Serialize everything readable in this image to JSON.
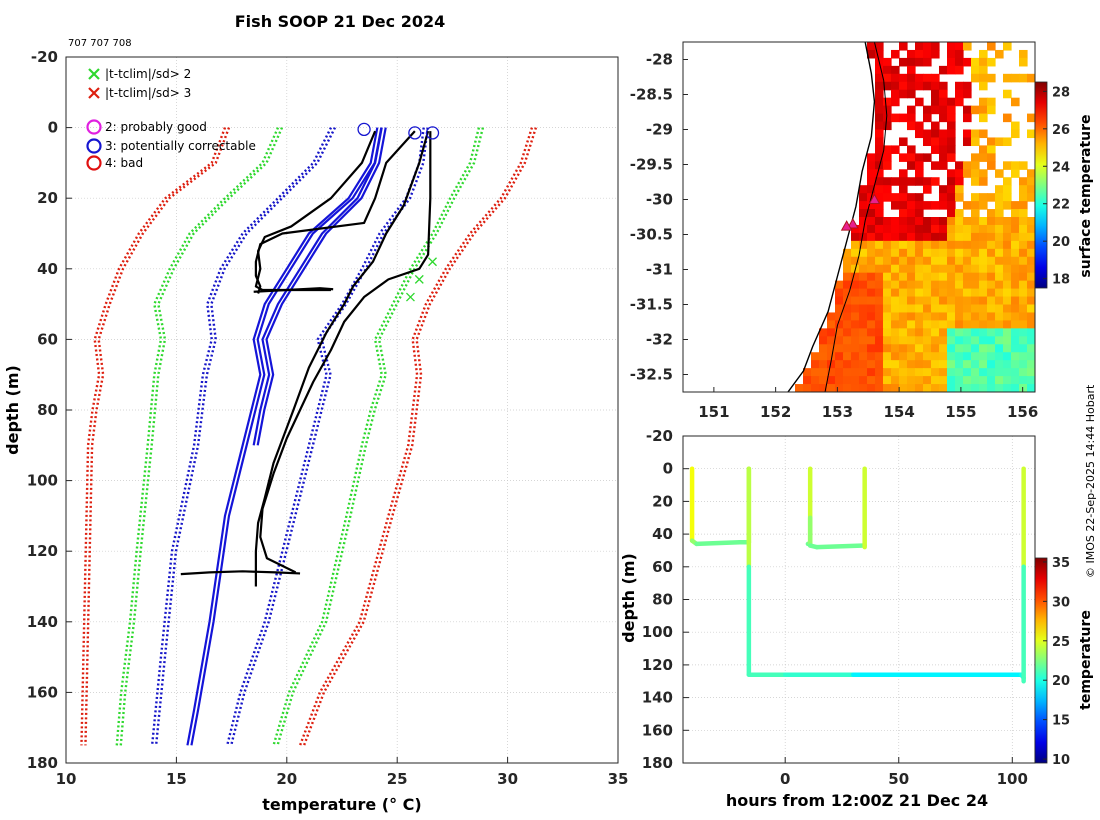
{
  "header": {
    "title": "Fish SOOP 21 Dec 2024",
    "ids": "707 707 708",
    "credit": "© IMOS 22-Sep-2025 14:44 Hobart"
  },
  "colors": {
    "clim_sd2": "#2ed82e",
    "clim_sd3": "#dd1f0f",
    "clim_mean_band": "#1616c8",
    "flag2": "#e020e0",
    "flag3": "#1616d0",
    "flag4": "#e01010",
    "profile_good": "#000000",
    "profile_clim": "#1414d8",
    "coast": "#000000"
  },
  "legend": {
    "items": [
      {
        "marker": "x",
        "color": "#2ed82e",
        "label": "|t-tclim|/sd> 2"
      },
      {
        "marker": "x",
        "color": "#dd1f0f",
        "label": "|t-tclim|/sd> 3"
      },
      {
        "marker": "o",
        "color": "#e020e0",
        "label": "2: probably good"
      },
      {
        "marker": "o",
        "color": "#1616d0",
        "label": "3: potentially correctable"
      },
      {
        "marker": "o",
        "color": "#e01010",
        "label": "4: bad"
      }
    ]
  },
  "chart_data": [
    {
      "type": "line",
      "name": "temperature-profiles",
      "xlabel": "temperature (° C)",
      "ylabel": "depth (m)",
      "xlim": [
        10,
        35
      ],
      "ylim": [
        -20,
        180
      ],
      "y_inverted": true,
      "xticks": [
        10,
        15,
        20,
        25,
        30,
        35
      ],
      "yticks": [
        -20,
        0,
        20,
        40,
        60,
        80,
        100,
        120,
        140,
        160,
        180
      ],
      "grid": true,
      "series": [
        {
          "name": "clim-mean-left",
          "style": "blue-solid",
          "temps": [
            24.1,
            23.8,
            22.8,
            21.0,
            20.0,
            19.0,
            18.5,
            18.8,
            18.4,
            18.0,
            17.2,
            16.5,
            15.8,
            15.5
          ],
          "depths": [
            0,
            10,
            20,
            30,
            40,
            50,
            60,
            70,
            80,
            90,
            110,
            140,
            165,
            175
          ]
        },
        {
          "name": "clim-mean-right",
          "style": "blue-solid",
          "temps": [
            24.3,
            24.0,
            23.2,
            21.6,
            20.6,
            19.6,
            18.9,
            19.2,
            18.8,
            18.5
          ],
          "depths": [
            0,
            10,
            20,
            30,
            40,
            50,
            60,
            70,
            80,
            90
          ]
        },
        {
          "name": "clim-sd1-left",
          "style": "blue-dotted",
          "temps": [
            22.0,
            21.2,
            19.6,
            18.0,
            17.0,
            16.4,
            16.6,
            16.2,
            15.8,
            14.8,
            14.3,
            13.9
          ],
          "depths": [
            0,
            10,
            20,
            30,
            40,
            50,
            60,
            70,
            90,
            120,
            150,
            175
          ]
        },
        {
          "name": "clim-sd1-right",
          "style": "blue-dotted",
          "temps": [
            26.2,
            26.0,
            25.4,
            24.2,
            23.4,
            22.5,
            21.4,
            21.8,
            21.4,
            21.0,
            20.2,
            19.0,
            17.9,
            17.3
          ],
          "depths": [
            0,
            10,
            20,
            30,
            40,
            50,
            60,
            70,
            80,
            90,
            110,
            140,
            160,
            175
          ]
        },
        {
          "name": "clim-sd2-left",
          "style": "green-dotted",
          "temps": [
            19.6,
            18.9,
            17.2,
            15.6,
            14.7,
            14.0,
            14.3,
            14.0,
            13.7,
            13.2,
            12.9,
            12.5,
            12.3
          ],
          "depths": [
            0,
            10,
            20,
            30,
            40,
            50,
            60,
            70,
            90,
            120,
            140,
            160,
            175
          ]
        },
        {
          "name": "clim-sd2-right",
          "style": "green-dotted",
          "temps": [
            28.7,
            28.3,
            27.4,
            26.6,
            25.6,
            24.8,
            24.0,
            24.3,
            23.8,
            23.4,
            22.7,
            21.6,
            20.1,
            19.4
          ],
          "depths": [
            0,
            10,
            20,
            30,
            40,
            50,
            60,
            70,
            80,
            90,
            110,
            140,
            160,
            175
          ]
        },
        {
          "name": "clim-sd3-left",
          "style": "red-dotted",
          "temps": [
            17.2,
            16.6,
            14.5,
            13.3,
            12.4,
            11.8,
            11.3,
            11.5,
            11.2,
            11.0,
            10.7
          ],
          "depths": [
            0,
            10,
            20,
            30,
            40,
            50,
            60,
            70,
            80,
            90,
            175
          ]
        },
        {
          "name": "clim-sd3-right",
          "style": "red-dotted",
          "temps": [
            31.1,
            30.6,
            29.7,
            28.3,
            27.2,
            26.3,
            25.7,
            25.9,
            25.7,
            25.5,
            24.6,
            23.3,
            21.5,
            20.6
          ],
          "depths": [
            0,
            10,
            20,
            30,
            40,
            50,
            60,
            70,
            80,
            90,
            110,
            140,
            160,
            175
          ]
        },
        {
          "name": "drop-1",
          "style": "black",
          "temps": [
            24.0,
            23.4,
            22.0,
            20.2,
            19.0,
            18.7,
            18.8,
            18.6,
            18.9,
            19.5,
            20.8,
            22.0
          ],
          "depths": [
            1,
            10,
            20,
            28,
            31,
            35,
            40,
            45,
            46,
            46,
            46,
            46
          ]
        },
        {
          "name": "drop-2",
          "style": "black",
          "temps": [
            25.8,
            24.5,
            24.0,
            23.5,
            19.8,
            18.8,
            18.6,
            18.6,
            18.8,
            18.7
          ],
          "depths": [
            1,
            10,
            20,
            27,
            30,
            33,
            38,
            42,
            45,
            47
          ]
        },
        {
          "name": "drop-3",
          "style": "black",
          "temps": [
            26.4,
            26.0,
            25.3,
            24.5,
            23.9,
            23.0,
            22.6,
            21.8,
            21.0,
            20.3,
            19.4,
            19.0,
            18.7,
            18.6,
            18.6,
            18.6
          ],
          "depths": [
            1,
            10,
            22,
            30,
            38,
            45,
            50,
            58,
            68,
            80,
            95,
            105,
            112,
            120,
            125,
            130
          ]
        },
        {
          "name": "drop-4",
          "style": "black",
          "temps": [
            26.5,
            26.5,
            26.5,
            26.4,
            26.0,
            24.6,
            23.5,
            22.6,
            22.0,
            21.2,
            20.6,
            20.0,
            19.4,
            18.9,
            18.8,
            19.1,
            20.4
          ],
          "depths": [
            1,
            10,
            20,
            36,
            40,
            43,
            48,
            55,
            63,
            72,
            80,
            88,
            98,
            108,
            116,
            122,
            126
          ]
        },
        {
          "name": "spike-46m",
          "style": "black",
          "temps": [
            18.5,
            20.0,
            21.5,
            22.1
          ],
          "depths": [
            46.5,
            46.0,
            45.5,
            45.8
          ]
        },
        {
          "name": "spike-126m",
          "style": "black",
          "temps": [
            15.2,
            16.5,
            18.0,
            19.5,
            20.6
          ],
          "depths": [
            126.5,
            126.0,
            125.7,
            126.0,
            126.3
          ]
        }
      ],
      "flag3_markers": [
        {
          "temp": 23.5,
          "depth": 0.5
        },
        {
          "temp": 25.8,
          "depth": 1.5
        },
        {
          "temp": 26.6,
          "depth": 1.5
        }
      ],
      "sd2_markers": [
        {
          "temp": 26.6,
          "depth": 38
        },
        {
          "temp": 26.0,
          "depth": 43
        },
        {
          "temp": 25.6,
          "depth": 48
        }
      ]
    },
    {
      "type": "heatmap",
      "name": "sst-map",
      "colorbar_label": "surface temperature",
      "xlim": [
        150.5,
        156.2
      ],
      "ylim": [
        -32.75,
        -27.75
      ],
      "xticks": [
        151,
        152,
        153,
        154,
        155,
        156
      ],
      "yticks": [
        -28,
        -28.5,
        -29,
        -29.5,
        -30,
        -30.5,
        -31,
        -31.5,
        -32,
        -32.5
      ],
      "colorbar_ticks": [
        18,
        20,
        22,
        24,
        26,
        28
      ],
      "colorbar_range": [
        17.5,
        28.5
      ],
      "coastline": [
        {
          "lon": 153.45,
          "lat": -27.75
        },
        {
          "lon": 153.55,
          "lat": -28.2
        },
        {
          "lon": 153.6,
          "lat": -28.6
        },
        {
          "lon": 153.55,
          "lat": -29.1
        },
        {
          "lon": 153.4,
          "lat": -29.6
        },
        {
          "lon": 153.3,
          "lat": -30.1
        },
        {
          "lon": 153.15,
          "lat": -30.6
        },
        {
          "lon": 153.0,
          "lat": -31.1
        },
        {
          "lon": 152.85,
          "lat": -31.6
        },
        {
          "lon": 152.6,
          "lat": -32.1
        },
        {
          "lon": 152.45,
          "lat": -32.45
        },
        {
          "lon": 152.2,
          "lat": -32.75
        }
      ],
      "shelf_contour": [
        {
          "lon": 153.6,
          "lat": -27.75
        },
        {
          "lon": 153.75,
          "lat": -28.3
        },
        {
          "lon": 153.8,
          "lat": -28.8
        },
        {
          "lon": 153.75,
          "lat": -29.3
        },
        {
          "lon": 153.6,
          "lat": -29.8
        },
        {
          "lon": 153.45,
          "lat": -30.3
        },
        {
          "lon": 153.35,
          "lat": -30.8
        },
        {
          "lon": 153.2,
          "lat": -31.3
        },
        {
          "lon": 153.0,
          "lat": -31.8
        },
        {
          "lon": 152.9,
          "lat": -32.3
        },
        {
          "lon": 152.8,
          "lat": -32.75
        }
      ],
      "stations": [
        {
          "lon": 153.6,
          "lat": -30.0
        },
        {
          "lon": 153.25,
          "lat": -30.35
        },
        {
          "lon": 153.15,
          "lat": -30.38
        }
      ]
    },
    {
      "type": "line",
      "name": "depth-time",
      "xlabel": "hours from 12:00Z 21 Dec 24",
      "ylabel": "depth (m)",
      "colorbar_label": "temperature",
      "xlim": [
        -45,
        110
      ],
      "ylim": [
        -20,
        180
      ],
      "y_inverted": true,
      "xticks": [
        0,
        50,
        100
      ],
      "yticks": [
        -20,
        0,
        20,
        40,
        60,
        80,
        100,
        120,
        140,
        160,
        180
      ],
      "colorbar_ticks": [
        10,
        15,
        20,
        25,
        30,
        35
      ],
      "colorbar_range": [
        9.5,
        35.5
      ],
      "segments": [
        {
          "hours": [
            -41,
            -41,
            -39,
            -20,
            -16
          ],
          "depths": [
            0,
            44,
            46,
            45,
            45
          ]
        },
        {
          "hours": [
            -16,
            -16,
            -16,
            -16
          ],
          "depths": [
            45,
            0,
            60,
            126
          ]
        },
        {
          "hours": [
            -16,
            0,
            30,
            60,
            104,
            105
          ],
          "depths": [
            126,
            126,
            126,
            126,
            126,
            128
          ]
        },
        {
          "hours": [
            10,
            11,
            11
          ],
          "depths": [
            46,
            46,
            0
          ]
        },
        {
          "hours": [
            11,
            11,
            14,
            35
          ],
          "depths": [
            30,
            47,
            48,
            47
          ]
        },
        {
          "hours": [
            35,
            35
          ],
          "depths": [
            48,
            0
          ]
        },
        {
          "hours": [
            105,
            105,
            105
          ],
          "depths": [
            0,
            60,
            130
          ]
        }
      ],
      "segment_temps": [
        [
          27,
          24,
          22,
          22,
          22
        ],
        [
          22,
          27,
          21,
          21
        ],
        [
          21,
          21,
          20,
          18,
          20,
          20
        ],
        [
          22,
          22,
          27
        ],
        [
          24,
          22,
          22,
          22
        ],
        [
          22,
          27
        ],
        [
          27,
          22,
          20
        ]
      ]
    }
  ]
}
